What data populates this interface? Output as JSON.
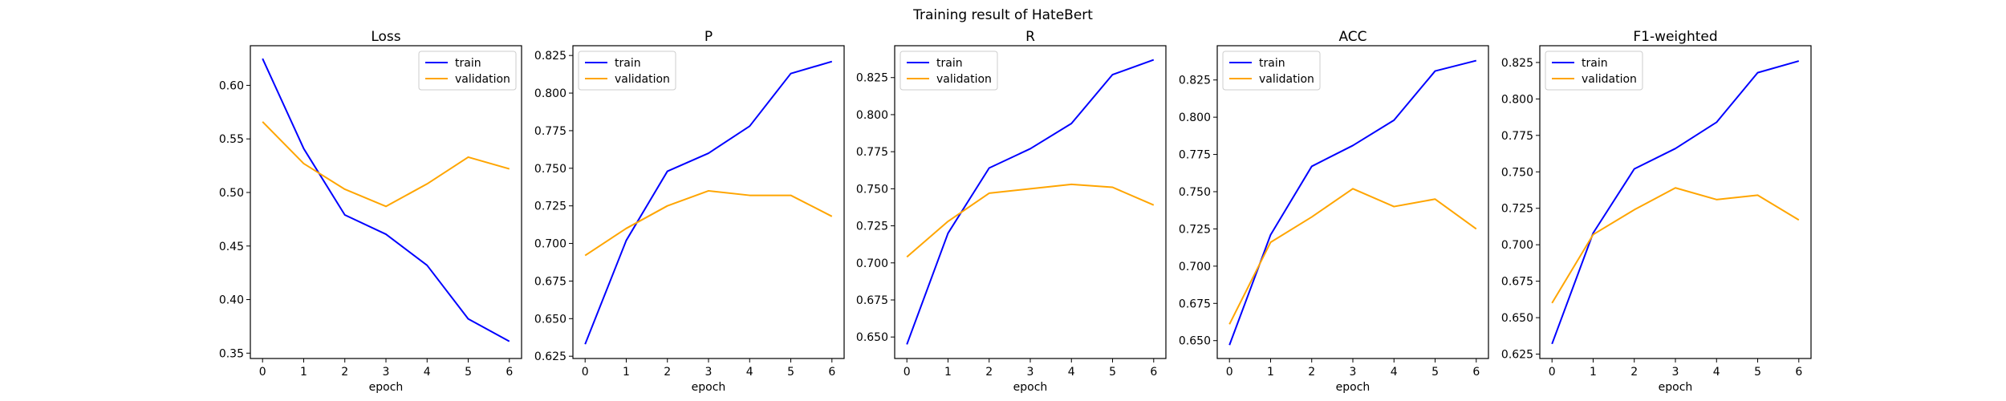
{
  "figure": {
    "suptitle": "Training result of HateBert"
  },
  "colors": {
    "train": "#0000ff",
    "validation": "#ffa500"
  },
  "chart_data": [
    {
      "type": "line",
      "title": "Loss",
      "xlabel": "epoch",
      "ylabel": "",
      "x": [
        0,
        1,
        2,
        3,
        4,
        5,
        6
      ],
      "ylim": [
        0.345,
        0.637
      ],
      "yticks": [
        "0.35",
        "0.40",
        "0.45",
        "0.50",
        "0.55",
        "0.60"
      ],
      "legend": "top-right",
      "series": [
        {
          "name": "train",
          "color": "#0000ff",
          "values": [
            0.625,
            0.541,
            0.479,
            0.461,
            0.432,
            0.382,
            0.361
          ]
        },
        {
          "name": "validation",
          "color": "#ffa500",
          "values": [
            0.566,
            0.527,
            0.503,
            0.487,
            0.508,
            0.533,
            0.522
          ]
        }
      ]
    },
    {
      "type": "line",
      "title": "P",
      "xlabel": "epoch",
      "ylabel": "",
      "x": [
        0,
        1,
        2,
        3,
        4,
        5,
        6
      ],
      "ylim": [
        0.6235,
        0.8315
      ],
      "yticks": [
        "0.625",
        "0.650",
        "0.675",
        "0.700",
        "0.725",
        "0.750",
        "0.775",
        "0.800",
        "0.825"
      ],
      "legend": "top-left",
      "series": [
        {
          "name": "train",
          "color": "#0000ff",
          "values": [
            0.633,
            0.702,
            0.748,
            0.76,
            0.778,
            0.813,
            0.821
          ]
        },
        {
          "name": "validation",
          "color": "#ffa500",
          "values": [
            0.692,
            0.71,
            0.725,
            0.735,
            0.732,
            0.732,
            0.718
          ]
        }
      ]
    },
    {
      "type": "line",
      "title": "R",
      "xlabel": "epoch",
      "ylabel": "",
      "x": [
        0,
        1,
        2,
        3,
        4,
        5,
        6
      ],
      "ylim": [
        0.6355,
        0.8465
      ],
      "yticks": [
        "0.650",
        "0.675",
        "0.700",
        "0.725",
        "0.750",
        "0.775",
        "0.800",
        "0.825"
      ],
      "legend": "top-left",
      "series": [
        {
          "name": "train",
          "color": "#0000ff",
          "values": [
            0.645,
            0.72,
            0.764,
            0.777,
            0.794,
            0.827,
            0.837
          ]
        },
        {
          "name": "validation",
          "color": "#ffa500",
          "values": [
            0.704,
            0.728,
            0.747,
            0.75,
            0.753,
            0.751,
            0.739
          ]
        }
      ]
    },
    {
      "type": "line",
      "title": "ACC",
      "xlabel": "epoch",
      "ylabel": "",
      "x": [
        0,
        1,
        2,
        3,
        4,
        5,
        6
      ],
      "ylim": [
        0.638,
        0.848
      ],
      "yticks": [
        "0.650",
        "0.675",
        "0.700",
        "0.725",
        "0.750",
        "0.775",
        "0.800",
        "0.825"
      ],
      "legend": "top-left",
      "series": [
        {
          "name": "train",
          "color": "#0000ff",
          "values": [
            0.647,
            0.721,
            0.767,
            0.781,
            0.798,
            0.831,
            0.838
          ]
        },
        {
          "name": "validation",
          "color": "#ffa500",
          "values": [
            0.661,
            0.716,
            0.733,
            0.752,
            0.74,
            0.745,
            0.725
          ]
        }
      ]
    },
    {
      "type": "line",
      "title": "F1-weighted",
      "xlabel": "epoch",
      "ylabel": "",
      "x": [
        0,
        1,
        2,
        3,
        4,
        5,
        6
      ],
      "ylim": [
        0.622,
        0.8365
      ],
      "yticks": [
        "0.625",
        "0.650",
        "0.675",
        "0.700",
        "0.725",
        "0.750",
        "0.775",
        "0.800",
        "0.825"
      ],
      "legend": "top-left",
      "series": [
        {
          "name": "train",
          "color": "#0000ff",
          "values": [
            0.632,
            0.708,
            0.752,
            0.766,
            0.784,
            0.818,
            0.826
          ]
        },
        {
          "name": "validation",
          "color": "#ffa500",
          "values": [
            0.66,
            0.707,
            0.724,
            0.739,
            0.731,
            0.734,
            0.717
          ]
        }
      ]
    }
  ]
}
